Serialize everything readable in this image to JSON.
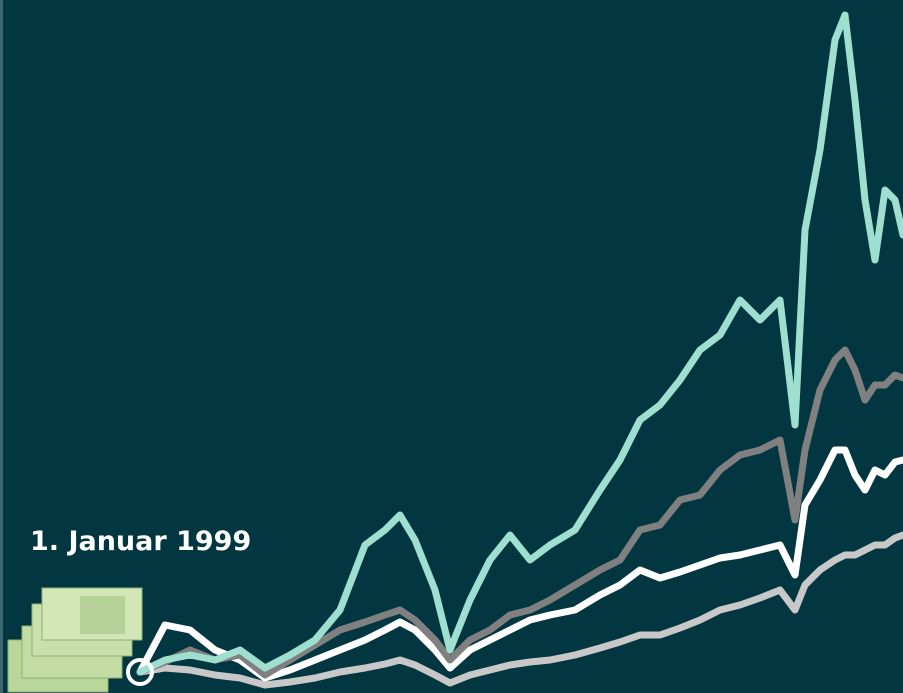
{
  "chart_data": {
    "type": "line",
    "annotation": "1. Januar 1999",
    "x": [
      0,
      25,
      50,
      75,
      100,
      125,
      150,
      175,
      200,
      225,
      245,
      260,
      275,
      295,
      310,
      330,
      350,
      370,
      390,
      410,
      435,
      460,
      480,
      500,
      520,
      540,
      560,
      580,
      600,
      620,
      640,
      655,
      665,
      680,
      695,
      705,
      715,
      725,
      735,
      745,
      755,
      763
    ],
    "xlim": [
      0,
      763
    ],
    "ylim": [
      0,
      693
    ],
    "series": [
      {
        "name": null,
        "color": "#9fdfcf",
        "values": [
          21,
          33,
          38,
          33,
          43,
          25,
          38,
          53,
          83,
          148,
          163,
          178,
          153,
          103,
          43,
          93,
          133,
          158,
          133,
          148,
          163,
          203,
          233,
          273,
          288,
          313,
          343,
          358,
          393,
          373,
          393,
          268,
          463,
          543,
          653,
          678,
          593,
          493,
          433,
          503,
          493,
          458
        ]
      },
      {
        "name": null,
        "color": "#808080",
        "values": [
          21,
          31,
          43,
          33,
          38,
          18,
          33,
          48,
          63,
          71,
          78,
          83,
          73,
          53,
          33,
          53,
          63,
          78,
          83,
          93,
          108,
          123,
          133,
          163,
          168,
          193,
          198,
          223,
          238,
          243,
          253,
          173,
          243,
          303,
          333,
          343,
          323,
          293,
          308,
          308,
          318,
          315
        ]
      },
      {
        "name": null,
        "color": "#ffffff",
        "values": [
          21,
          68,
          63,
          43,
          33,
          15,
          23,
          33,
          43,
          53,
          63,
          71,
          63,
          43,
          25,
          43,
          53,
          63,
          73,
          78,
          83,
          98,
          108,
          123,
          115,
          121,
          128,
          135,
          138,
          143,
          148,
          118,
          188,
          213,
          243,
          243,
          218,
          203,
          223,
          218,
          231,
          233
        ]
      },
      {
        "name": null,
        "color": "#c8c8c8",
        "values": [
          21,
          25,
          23,
          18,
          15,
          8,
          11,
          15,
          21,
          25,
          29,
          33,
          28,
          18,
          10,
          18,
          23,
          28,
          31,
          33,
          38,
          45,
          51,
          58,
          58,
          65,
          73,
          83,
          88,
          95,
          103,
          83,
          108,
          123,
          133,
          138,
          138,
          143,
          148,
          148,
          155,
          158
        ]
      }
    ]
  }
}
